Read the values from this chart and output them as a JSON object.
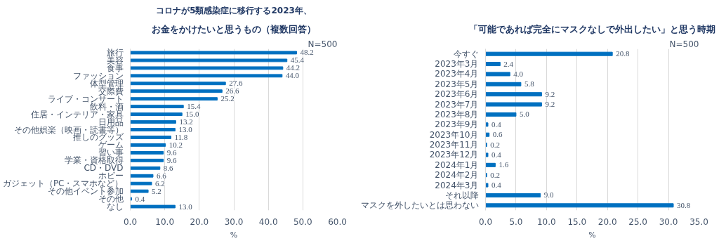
{
  "chart_data": [
    {
      "type": "bar",
      "orientation": "horizontal",
      "subtitle": "コロナが5類感染症に移行する2023年、",
      "title": "お金をかけたいと思うもの（複数回答）",
      "xlabel": "%",
      "annotations": [
        "N=500"
      ],
      "categories": [
        "旅行",
        "美容",
        "食事",
        "ファッション",
        "体型管理",
        "交際費",
        "ライブ・コンサート",
        "飲料・酒",
        "住居・インテリア・家具",
        "日用品",
        "その他娯楽（映画・読書等）",
        "推しのグッズ",
        "ゲーム",
        "習い事",
        "学業・資格取得",
        "CD・DVD",
        "ホビー",
        "ガジェット（PC・スマホなど）",
        "その他イベント参加",
        "その他",
        "なし"
      ],
      "values": [
        48.2,
        45.4,
        44.2,
        44.0,
        27.6,
        26.6,
        25.2,
        15.4,
        15.0,
        13.2,
        13.0,
        11.8,
        10.2,
        9.6,
        9.6,
        8.6,
        6.6,
        6.2,
        5.2,
        0.4,
        13.0
      ],
      "value_labels": [
        "48.2",
        "45.4",
        "44.2",
        "44.0",
        "27.6",
        "26.6",
        "25.2",
        "15.4",
        "15.0",
        "13.2",
        "13.0",
        "11.8",
        "10.2",
        "9.6",
        "9.6",
        "8.6",
        "6.6",
        "6.2",
        "5.2",
        "0.4",
        "13.0"
      ],
      "color": "#0070c0",
      "xlim": [
        0,
        60
      ],
      "xticks": [
        {
          "value": 0,
          "label": "0.0"
        },
        {
          "value": 10,
          "label": "10.0"
        },
        {
          "value": 20,
          "label": "20.0"
        },
        {
          "value": 30,
          "label": "30.0"
        },
        {
          "value": 40,
          "label": "40.0"
        },
        {
          "value": 50,
          "label": "50.0"
        },
        {
          "value": 60,
          "label": "60.0"
        }
      ],
      "grid": "x"
    },
    {
      "type": "bar",
      "orientation": "horizontal",
      "title": "「可能であれば完全にマスクなしで外出したい」と思う時期",
      "xlabel": "%",
      "annotations": [
        "N=500"
      ],
      "categories": [
        "今すぐ",
        "2023年3月",
        "2023年4月",
        "2023年5月",
        "2023年6月",
        "2023年7月",
        "2023年8月",
        "2023年9月",
        "2023年10月",
        "2023年11月",
        "2023年12月",
        "2024年1月",
        "2024年2月",
        "2024年3月",
        "それ以降",
        "マスクを外したいとは思わない"
      ],
      "values": [
        20.8,
        2.4,
        4.0,
        5.8,
        9.2,
        9.2,
        5.0,
        0.4,
        0.6,
        0.2,
        0.4,
        1.6,
        0.2,
        0.4,
        9.0,
        30.8
      ],
      "value_labels": [
        "20.8",
        "2.4",
        "4.0",
        "5.8",
        "9.2",
        "9.2",
        "5.0",
        "0.4",
        "0.6",
        "0.2",
        "0.4",
        "1.6",
        "0.2",
        "0.4",
        "9.0",
        "30.8"
      ],
      "color": "#0070c0",
      "xlim": [
        0,
        35
      ],
      "xticks": [
        {
          "value": 0,
          "label": "0.0"
        },
        {
          "value": 5,
          "label": "5.0"
        },
        {
          "value": 10,
          "label": "10.0"
        },
        {
          "value": 15,
          "label": "15.0"
        },
        {
          "value": 20,
          "label": "20.0"
        },
        {
          "value": 25,
          "label": "25.0"
        },
        {
          "value": 30,
          "label": "30.0"
        },
        {
          "value": 35,
          "label": "35.0"
        }
      ],
      "grid": "x"
    }
  ]
}
